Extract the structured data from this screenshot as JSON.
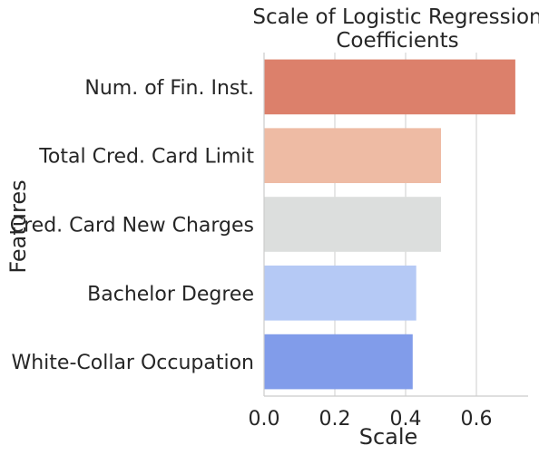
{
  "chart_data": {
    "type": "bar",
    "orientation": "horizontal",
    "title_lines": [
      "Scale of Logistic Regression",
      "Coefficients"
    ],
    "xlabel": "Scale",
    "ylabel": "Features",
    "categories": [
      "Num. of Fin. Inst.",
      "Total Cred. Card Limit",
      "Cred. Card New Charges",
      "Bachelor Degree",
      "White-Collar Occupation"
    ],
    "values": [
      0.71,
      0.5,
      0.5,
      0.43,
      0.42
    ],
    "colors": [
      "#dc806b",
      "#eebba4",
      "#dcdedd",
      "#b5c9f5",
      "#819cea"
    ],
    "xticks": [
      "0.0",
      "0.2",
      "0.4",
      "0.6"
    ],
    "xlim": [
      0,
      0.72
    ],
    "grid": "vertical",
    "legend": "none"
  }
}
